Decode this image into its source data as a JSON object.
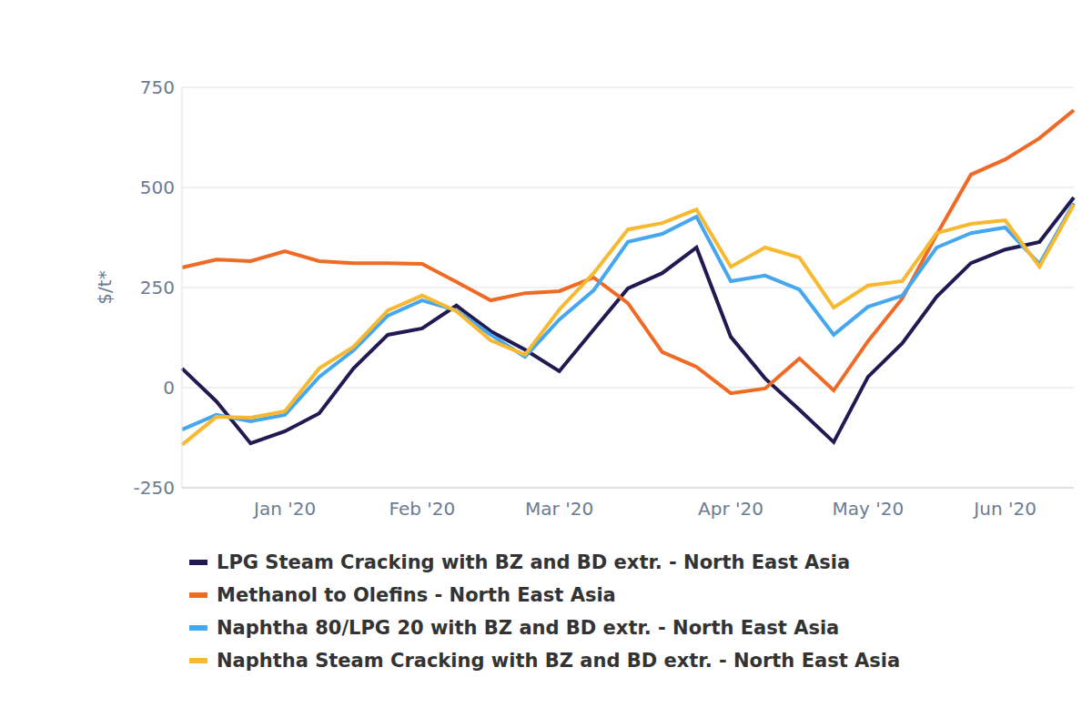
{
  "chart_data": {
    "type": "line",
    "y_label": "$/t*",
    "categories": [
      null,
      null,
      null,
      "Jan '20",
      null,
      null,
      null,
      "Feb '20",
      null,
      null,
      null,
      "Mar '20",
      null,
      null,
      null,
      null,
      "Apr '20",
      null,
      null,
      null,
      "May '20",
      null,
      null,
      null,
      "Jun '20",
      null,
      null
    ],
    "series": [
      {
        "name": "LPG Steam Cracking with BZ and BD extr. - North East Asia",
        "color": "#211a52",
        "values": [
          48,
          -34,
          -139,
          -109,
          -64,
          48,
          132,
          148,
          205,
          141,
          95,
          41,
          145,
          248,
          286,
          350,
          127,
          23,
          -55,
          -136,
          27,
          111,
          227,
          311,
          345,
          364,
          475
        ]
      },
      {
        "name": "Methanol to Olefins - North East Asia",
        "color": "#ef6a24",
        "values": [
          300,
          320,
          316,
          341,
          316,
          311,
          311,
          309,
          264,
          218,
          236,
          241,
          275,
          211,
          89,
          52,
          -14,
          -2,
          73,
          -7,
          116,
          223,
          382,
          532,
          570,
          623,
          693
        ]
      },
      {
        "name": "Naphtha 80/LPG 20 with BZ and BD extr. - North East Asia",
        "color": "#45a7ef",
        "values": [
          -105,
          -68,
          -84,
          -68,
          27,
          93,
          180,
          218,
          193,
          132,
          77,
          170,
          243,
          364,
          384,
          427,
          266,
          280,
          245,
          132,
          202,
          230,
          350,
          386,
          400,
          309,
          461
        ]
      },
      {
        "name": "Naphtha Steam Cracking with BZ and BD extr. - North East Asia",
        "color": "#f8b830",
        "values": [
          -143,
          -73,
          -75,
          -59,
          48,
          102,
          193,
          230,
          191,
          118,
          82,
          195,
          286,
          395,
          411,
          445,
          302,
          350,
          325,
          200,
          255,
          266,
          386,
          409,
          418,
          302,
          457
        ]
      }
    ],
    "ylim": [
      -250,
      750
    ],
    "yticks": [
      -250,
      0,
      250,
      500,
      750
    ],
    "grid": true,
    "legend": "bottom"
  }
}
